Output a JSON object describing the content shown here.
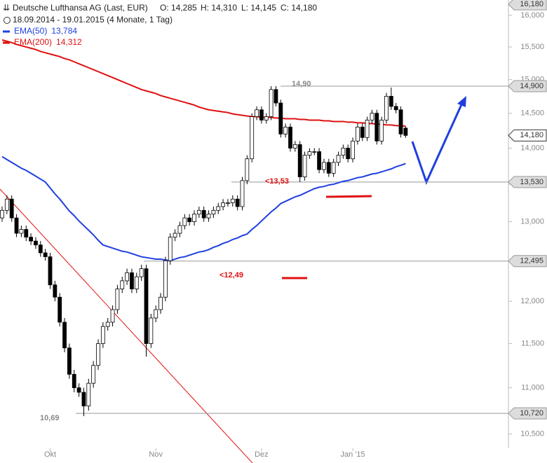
{
  "chart_data": {
    "type": "candlestick",
    "title": "Deutsche Lufthansa AG (Last, EUR)",
    "ohlc": [
      "O: 14,285",
      "H: 14,310",
      "L: 14,145",
      "C: 14,180"
    ],
    "subtitle": "18.09.2014 - 19.01.2015 (4 Monate, 1 Tag)",
    "log_scale": true,
    "ylim": [
      10.35,
      16.25
    ],
    "yticks": [
      {
        "value": 10.5,
        "label": "10,500"
      },
      {
        "value": 11,
        "label": "11,000"
      },
      {
        "value": 11.5,
        "label": "11,500"
      },
      {
        "value": 12,
        "label": "12,000"
      },
      {
        "value": 12.5,
        "label": "12,500"
      },
      {
        "value": 13,
        "label": "13,000"
      },
      {
        "value": 13.5,
        "label": "13,500"
      },
      {
        "value": 14,
        "label": "14,000"
      },
      {
        "value": 14.5,
        "label": "14,500"
      },
      {
        "value": 15,
        "label": "15,000"
      },
      {
        "value": 15.5,
        "label": "15,500"
      },
      {
        "value": 16,
        "label": "16,000"
      }
    ],
    "categories": [
      null,
      null,
      null,
      null,
      null,
      null,
      null,
      null,
      null,
      null,
      "Okt",
      null,
      null,
      null,
      null,
      null,
      null,
      null,
      null,
      null,
      null,
      null,
      null,
      null,
      null,
      null,
      null,
      null,
      null,
      null,
      null,
      null,
      "Nov",
      null,
      null,
      null,
      null,
      null,
      null,
      null,
      null,
      null,
      null,
      null,
      null,
      null,
      null,
      null,
      null,
      null,
      null,
      null,
      null,
      null,
      "Dez",
      null,
      null,
      null,
      null,
      null,
      null,
      null,
      null,
      null,
      null,
      null,
      null,
      null,
      null,
      null,
      null,
      null,
      null,
      "Jan '15",
      null,
      null,
      null,
      null,
      null,
      null,
      null,
      null,
      null,
      null,
      null
    ],
    "open": [
      13.05,
      13.15,
      13.3,
      13.05,
      12.85,
      12.9,
      12.8,
      12.75,
      12.7,
      12.6,
      12.55,
      12.2,
      12.05,
      11.75,
      11.45,
      11.15,
      11.0,
      10.95,
      10.8,
      11.05,
      11.25,
      11.5,
      11.7,
      11.75,
      11.9,
      12.15,
      12.25,
      12.35,
      12.15,
      12.3,
      12.4,
      11.5,
      11.8,
      11.9,
      12.05,
      12.5,
      12.8,
      12.85,
      12.95,
      13.05,
      13.0,
      13.1,
      13.15,
      13.05,
      13.1,
      13.15,
      13.2,
      13.25,
      13.25,
      13.3,
      13.2,
      13.55,
      13.85,
      14.45,
      14.55,
      14.4,
      14.45,
      14.85,
      14.65,
      14.2,
      14.3,
      14.0,
      14.05,
      13.6,
      13.9,
      13.95,
      13.95,
      13.7,
      13.8,
      13.65,
      13.8,
      13.9,
      14.0,
      13.85,
      14.1,
      14.3,
      14.15,
      14.4,
      14.5,
      14.1,
      14.4,
      14.75,
      14.6,
      14.55,
      14.285
    ],
    "high": [
      13.2,
      13.35,
      13.35,
      13.1,
      12.95,
      12.95,
      12.85,
      12.8,
      12.75,
      12.65,
      12.6,
      12.25,
      12.1,
      11.8,
      11.5,
      11.2,
      11.05,
      11.0,
      11.1,
      11.3,
      11.55,
      11.75,
      11.8,
      11.95,
      12.2,
      12.3,
      12.4,
      12.4,
      12.35,
      12.45,
      12.45,
      11.85,
      11.95,
      12.1,
      12.55,
      12.85,
      12.9,
      13.0,
      13.1,
      13.1,
      13.15,
      13.2,
      13.2,
      13.15,
      13.2,
      13.25,
      13.3,
      13.3,
      13.35,
      13.35,
      13.6,
      13.9,
      14.5,
      14.6,
      14.6,
      14.5,
      14.9,
      14.9,
      14.7,
      14.35,
      14.35,
      14.1,
      14.1,
      13.95,
      14.0,
      14.0,
      14.0,
      13.85,
      13.85,
      13.85,
      13.95,
      14.05,
      14.05,
      14.15,
      14.35,
      14.35,
      14.45,
      14.55,
      14.55,
      14.45,
      14.8,
      14.88,
      14.65,
      14.6,
      14.31
    ],
    "low": [
      13.0,
      13.1,
      13.0,
      12.8,
      12.8,
      12.75,
      12.7,
      12.65,
      12.55,
      12.5,
      12.15,
      12.0,
      11.7,
      11.4,
      11.1,
      10.95,
      10.9,
      10.69,
      10.75,
      11.0,
      11.2,
      11.45,
      11.65,
      11.7,
      11.85,
      12.1,
      12.2,
      12.1,
      12.1,
      12.25,
      11.35,
      11.45,
      11.75,
      11.85,
      12.0,
      12.45,
      12.75,
      12.8,
      12.9,
      12.95,
      12.95,
      13.05,
      13.0,
      13.0,
      13.05,
      13.1,
      13.15,
      13.2,
      13.2,
      13.15,
      13.15,
      13.5,
      13.8,
      14.4,
      14.35,
      14.35,
      14.4,
      14.6,
      14.15,
      14.15,
      13.95,
      13.95,
      13.53,
      13.55,
      13.85,
      13.9,
      13.65,
      13.65,
      13.6,
      13.6,
      13.75,
      13.85,
      13.8,
      13.8,
      14.05,
      14.1,
      14.1,
      14.35,
      14.05,
      14.05,
      14.35,
      14.55,
      14.5,
      14.15,
      14.145
    ],
    "close": [
      13.15,
      13.3,
      13.05,
      12.85,
      12.9,
      12.8,
      12.75,
      12.7,
      12.6,
      12.55,
      12.2,
      12.05,
      11.75,
      11.45,
      11.15,
      11.0,
      10.95,
      10.8,
      11.05,
      11.25,
      11.5,
      11.7,
      11.75,
      11.9,
      12.15,
      12.25,
      12.35,
      12.15,
      12.3,
      12.4,
      11.5,
      11.8,
      11.9,
      12.05,
      12.5,
      12.8,
      12.85,
      12.95,
      13.05,
      13.0,
      13.1,
      13.15,
      13.05,
      13.1,
      13.15,
      13.2,
      13.25,
      13.25,
      13.3,
      13.2,
      13.55,
      13.85,
      14.45,
      14.55,
      14.4,
      14.45,
      14.85,
      14.65,
      14.2,
      14.3,
      14.0,
      14.05,
      13.6,
      13.9,
      13.95,
      13.95,
      13.7,
      13.8,
      13.65,
      13.8,
      13.9,
      14.0,
      13.85,
      14.1,
      14.3,
      14.15,
      14.4,
      14.5,
      14.1,
      14.4,
      14.75,
      14.6,
      14.55,
      14.2,
      14.18
    ],
    "series": [
      {
        "name": "EMA(50)",
        "color": "#1f3fe0",
        "legend_label": "13,784",
        "values": [
          13.88,
          13.84,
          13.8,
          13.76,
          13.72,
          13.69,
          13.65,
          13.61,
          13.57,
          13.53,
          13.45,
          13.37,
          13.3,
          13.22,
          13.14,
          13.08,
          13.01,
          12.95,
          12.89,
          12.83,
          12.76,
          12.7,
          12.68,
          12.66,
          12.64,
          12.62,
          12.61,
          12.59,
          12.57,
          12.55,
          12.54,
          12.53,
          12.52,
          12.52,
          12.51,
          12.5,
          12.52,
          12.54,
          12.55,
          12.57,
          12.59,
          12.61,
          12.62,
          12.64,
          12.67,
          12.69,
          12.72,
          12.74,
          12.77,
          12.79,
          12.82,
          12.84,
          12.9,
          12.95,
          13.01,
          13.07,
          13.13,
          13.18,
          13.24,
          13.27,
          13.3,
          13.33,
          13.35,
          13.38,
          13.41,
          13.44,
          13.46,
          13.47,
          13.49,
          13.5,
          13.52,
          13.54,
          13.55,
          13.57,
          13.59,
          13.6,
          13.62,
          13.64,
          13.65,
          13.67,
          13.69,
          13.71,
          13.74,
          13.76,
          13.784
        ]
      },
      {
        "name": "EMA(200)",
        "color": "#e01010",
        "legend_label": "14,312",
        "values": [
          15.61,
          15.59,
          15.57,
          15.54,
          15.52,
          15.5,
          15.48,
          15.46,
          15.43,
          15.41,
          15.39,
          15.37,
          15.35,
          15.32,
          15.3,
          15.27,
          15.24,
          15.21,
          15.18,
          15.15,
          15.12,
          15.09,
          15.06,
          15.03,
          15.0,
          14.97,
          14.94,
          14.91,
          14.88,
          14.85,
          14.83,
          14.81,
          14.79,
          14.76,
          14.74,
          14.72,
          14.7,
          14.68,
          14.66,
          14.64,
          14.62,
          14.59,
          14.57,
          14.55,
          14.54,
          14.53,
          14.52,
          14.51,
          14.49,
          14.48,
          14.47,
          14.46,
          14.45,
          14.45,
          14.44,
          14.44,
          14.44,
          14.43,
          14.43,
          14.42,
          14.42,
          14.42,
          14.41,
          14.41,
          14.4,
          14.4,
          14.4,
          14.39,
          14.39,
          14.38,
          14.38,
          14.38,
          14.37,
          14.37,
          14.36,
          14.36,
          14.35,
          14.35,
          14.34,
          14.34,
          14.33,
          14.33,
          14.32,
          14.32,
          14.312
        ]
      }
    ],
    "levels": [
      {
        "value": 16.18,
        "label": "16,180"
      },
      {
        "value": 14.9,
        "label": "14,900"
      },
      {
        "value": 14.18,
        "label": "14,180"
      },
      {
        "value": 13.53,
        "label": "13,530"
      },
      {
        "value": 12.495,
        "label": "12,495"
      },
      {
        "value": 10.72,
        "label": "10,720"
      }
    ],
    "annotations": [
      "14,90",
      "<13,53",
      "<12,49",
      "10,69"
    ]
  }
}
